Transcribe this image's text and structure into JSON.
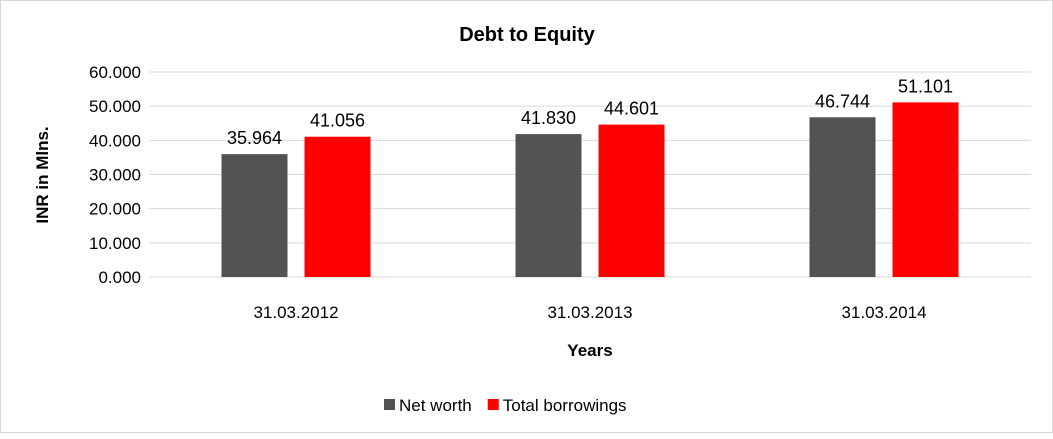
{
  "chart_data": {
    "type": "bar",
    "title": "Debt to Equity",
    "xlabel": "Years",
    "ylabel": "INR in Mlns.",
    "categories": [
      "31.03.2012",
      "31.03.2013",
      "31.03.2014"
    ],
    "series": [
      {
        "name": "Net worth",
        "values": [
          35.964,
          41.83,
          46.744
        ],
        "labels": [
          "35.964",
          "41.830",
          "46.744"
        ],
        "color": "#525252"
      },
      {
        "name": "Total borrowings",
        "values": [
          41.056,
          44.601,
          51.101
        ],
        "labels": [
          "41.056",
          "44.601",
          "51.101"
        ],
        "color": "#ff0000"
      }
    ],
    "ylim": [
      0,
      60
    ],
    "yticks": [
      "0.000",
      "10.000",
      "20.000",
      "30.000",
      "40.000",
      "50.000",
      "60.000"
    ],
    "grid": true,
    "legend_position": "bottom"
  }
}
